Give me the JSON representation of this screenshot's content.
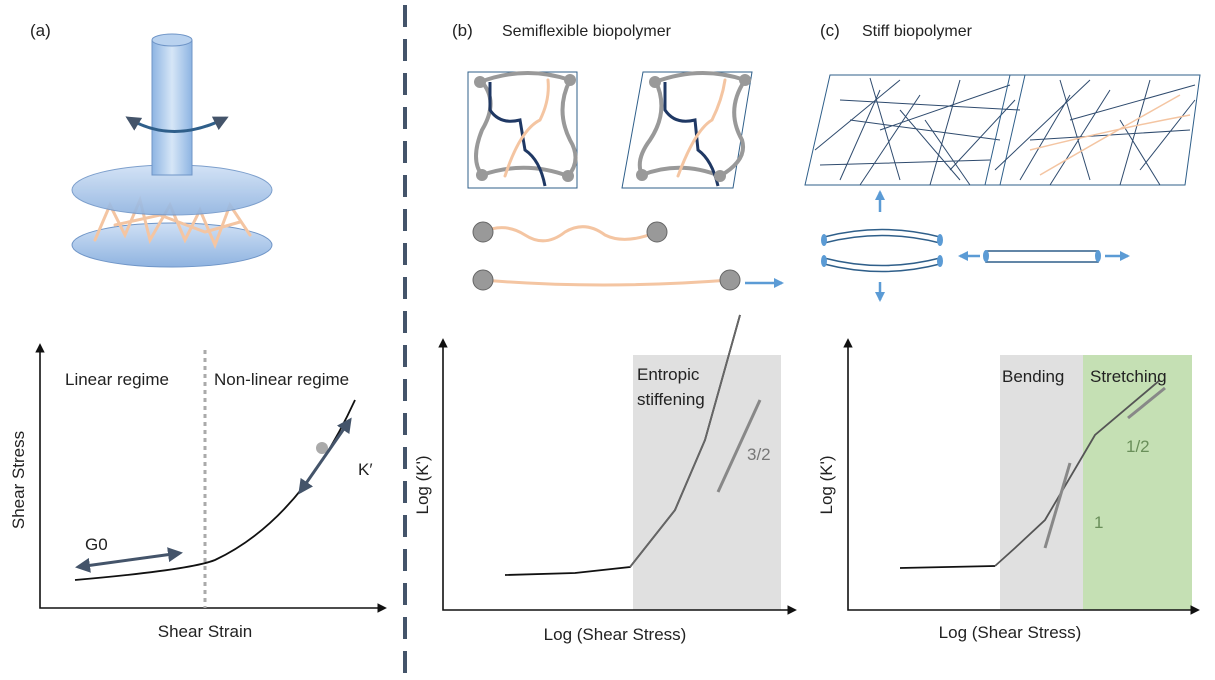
{
  "panel_a": {
    "label": "(a)",
    "plot": {
      "regime_left": "Linear regime",
      "regime_right": "Non-linear regime",
      "y_axis": "Shear Stress",
      "x_axis": "Shear Strain",
      "linear_modulus": "G0",
      "differential_modulus": "K′"
    }
  },
  "panel_b": {
    "label": "(b)",
    "title": "Semiflexible biopolymer",
    "plot": {
      "y_axis": "Log (K')",
      "x_axis": "Log (Shear Stress)",
      "region_line1": "Entropic",
      "region_line2": "stiffening",
      "slope": "3/2"
    }
  },
  "panel_c": {
    "label": "(c)",
    "title": "Stiff biopolymer",
    "plot": {
      "y_axis": "Log (K')",
      "x_axis": "Log (Shear Stress)",
      "region_left": "Bending",
      "region_right": "Stretching",
      "slope_stretching": "1/2",
      "slope_bending": "1"
    }
  }
}
